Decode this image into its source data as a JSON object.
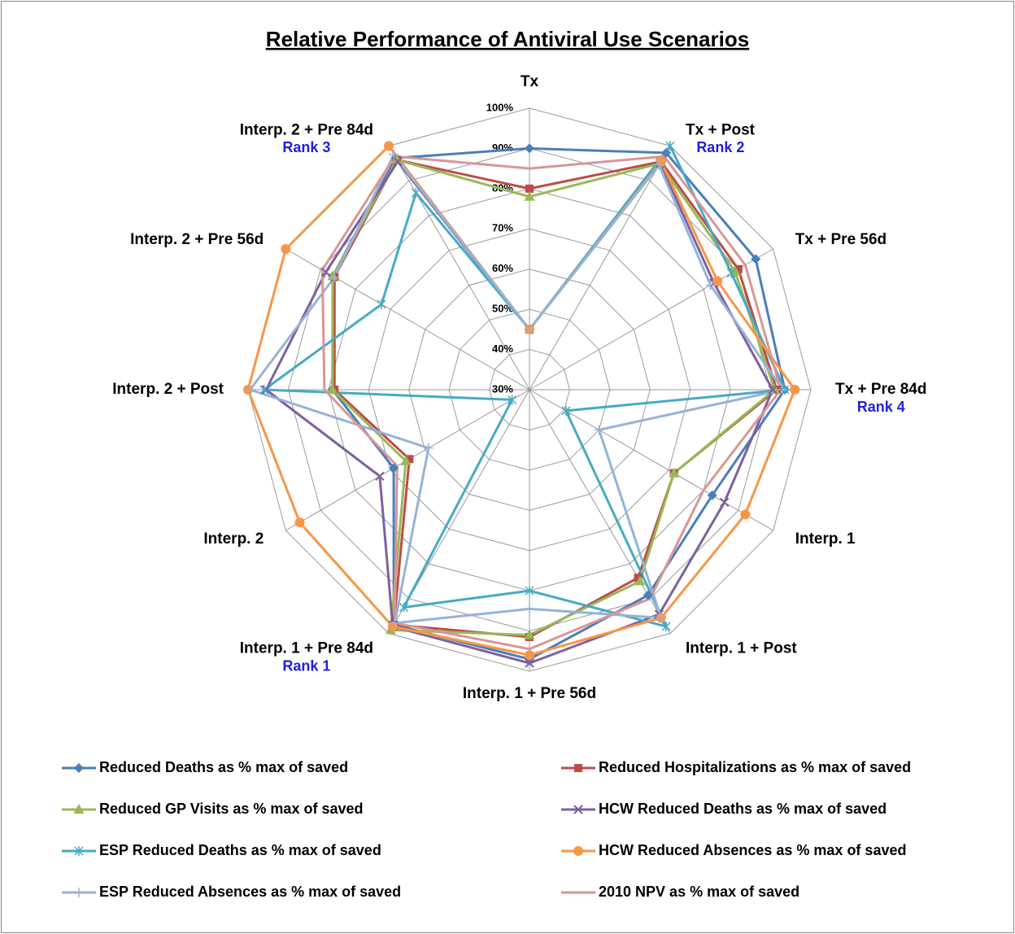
{
  "chart_data": {
    "type": "radar",
    "title": "Relative Performance of Antiviral Use Scenarios",
    "categories": [
      "Tx",
      "Tx + Post",
      "Tx + Pre 56d",
      "Tx + Pre 84d",
      "Interp. 1",
      "Interp. 1 + Post",
      "Interp. 1 + Pre 56d",
      "Interp. 1 + Pre 84d",
      "Interp. 2",
      "Interp. 2 + Post",
      "Interp. 2 + Pre 56d",
      "Interp. 2 + Pre 84d"
    ],
    "rlim": [
      30,
      100
    ],
    "rticks": [
      {
        "value": 30,
        "label": "30%"
      },
      {
        "value": 40,
        "label": "40%"
      },
      {
        "value": 50,
        "label": "50%"
      },
      {
        "value": 60,
        "label": "60%"
      },
      {
        "value": 70,
        "label": "70%"
      },
      {
        "value": 80,
        "label": "80%"
      },
      {
        "value": 90,
        "label": "90%"
      },
      {
        "value": 100,
        "label": "100%"
      }
    ],
    "grid": true,
    "annotations": [
      {
        "text": "Rank 2",
        "category": 1,
        "color": "#1f1fe0"
      },
      {
        "text": "Rank 4",
        "category": 3,
        "color": "#1f1fe0"
      },
      {
        "text": "Rank 1",
        "category": 7,
        "color": "#1f1fe0"
      },
      {
        "text": "Rank 3",
        "category": 11,
        "color": "#1f1fe0"
      }
    ],
    "legend": "bottom",
    "series": [
      {
        "name": "Reduced Deaths as % max of saved",
        "color": "#4a7ebb",
        "marker": "diamond",
        "values": [
          90,
          98,
          95,
          93.5,
          82.5,
          89,
          97,
          97.5,
          69,
          79,
          86.5,
          96.5
        ]
      },
      {
        "name": "Reduced Hospitalizations  as % max of saved",
        "color": "#be4b48",
        "marker": "square",
        "values": [
          80,
          95.5,
          90,
          91.5,
          71.5,
          84,
          91.5,
          97.5,
          64.5,
          78.5,
          86,
          96
        ]
      },
      {
        "name": "Reduced GP Visits as % max of saved",
        "color": "#98b954",
        "marker": "triangle",
        "values": [
          78,
          95,
          89,
          91,
          71.5,
          85,
          91,
          99,
          65.5,
          79,
          86.5,
          96
        ]
      },
      {
        "name": "HCW Reduced Deaths as % max of saved",
        "color": "#7d60a0",
        "marker": "x",
        "values": [
          45,
          95,
          83,
          90.5,
          86,
          94.5,
          98,
          98,
          73,
          95.5,
          88.5,
          95.5
        ]
      },
      {
        "name": "ESP Reduced Deaths as % max of saved",
        "color": "#46aac5",
        "marker": "star",
        "values": [
          45,
          100,
          88,
          93.5,
          40.5,
          98,
          80,
          92.5,
          35,
          96,
          72.5,
          86.5
        ]
      },
      {
        "name": "HCW Reduced Absences as % max of saved",
        "color": "#f79646",
        "marker": "circle",
        "values": [
          45,
          95.5,
          84,
          96,
          92,
          95.5,
          96,
          98,
          96,
          100,
          100,
          100
        ]
      },
      {
        "name": "ESP Reduced Absences as % max of saved",
        "color": "#95b3d7",
        "marker": "plus",
        "values": [
          45,
          94.5,
          82,
          93,
          50,
          95.5,
          84.5,
          97,
          59,
          99.5,
          86,
          97.5
        ]
      },
      {
        "name": "2010 NPV as % max of saved",
        "color": "#d99694",
        "marker": "none",
        "values": [
          85,
          97,
          92,
          92.5,
          80,
          90,
          94.5,
          97,
          68,
          81,
          89.5,
          97
        ]
      }
    ]
  }
}
